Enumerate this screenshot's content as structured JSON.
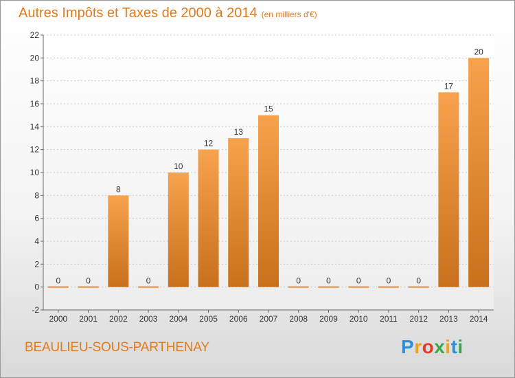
{
  "title": "Autres Impôts et Taxes de 2000 à 2014",
  "title_unit": "(en milliers d'€)",
  "commune": "BEAULIEU-SOUS-PARTHENAY",
  "brand": {
    "text": "Proxiti",
    "letters": [
      "P",
      "r",
      "o",
      "x",
      "i",
      "t",
      "i"
    ],
    "letter_colors": [
      "#2f8fd6",
      "#f0a020",
      "#e23b2e",
      "#3aa84a",
      "#f0a020",
      "#2f8fd6",
      "#3aa84a"
    ]
  },
  "colors": {
    "accent": "#e07a1a",
    "bar_light": "#f7a24c",
    "bar_dark": "#c8701b"
  },
  "chart_data": {
    "type": "bar",
    "categories": [
      "2000",
      "2001",
      "2002",
      "2003",
      "2004",
      "2005",
      "2006",
      "2007",
      "2008",
      "2009",
      "2010",
      "2011",
      "2012",
      "2013",
      "2014"
    ],
    "values": [
      0,
      0,
      8,
      0,
      10,
      12,
      13,
      15,
      0,
      0,
      0,
      0,
      0,
      17,
      20
    ],
    "data_labels": [
      "0",
      "0",
      "8",
      "0",
      "10",
      "12",
      "13",
      "15",
      "0",
      "0",
      "0",
      "0",
      "0",
      "17",
      "20"
    ],
    "yticks": [
      "-2",
      "0",
      "2",
      "4",
      "6",
      "8",
      "10",
      "12",
      "14",
      "16",
      "18",
      "20",
      "22"
    ],
    "ylim": [
      -2,
      22
    ],
    "grid": true,
    "title": "Autres Impôts et Taxes de 2000 à 2014"
  }
}
